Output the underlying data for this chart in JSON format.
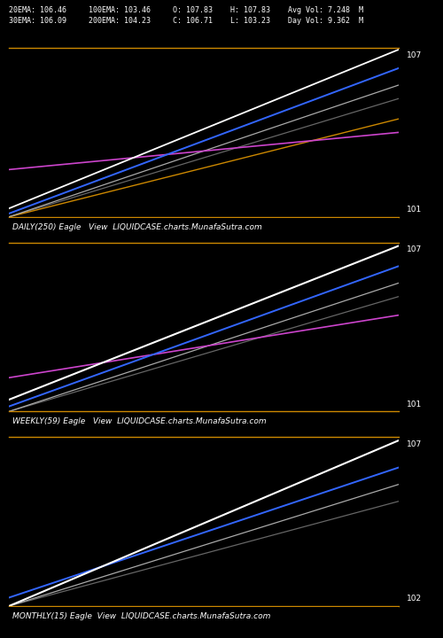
{
  "background_color": "#000000",
  "border_color": "#cc8800",
  "fig_width": 5.0,
  "fig_height": 7.2,
  "header_line1": "20EMA: 106.46     100EMA: 103.46     O: 107.83    H: 107.83    Avg Vol: 7.248  M",
  "header_line2": "30EMA: 106.09     200EMA: 104.23     C: 106.71    L: 103.23    Day Vol: 9.362  M",
  "header_fontsize": 6.0,
  "panels": [
    {
      "label": "DAILY(250) Eagle   View  LIQUIDCASE.charts.MunafaSutra.com",
      "y_top_label": "107",
      "y_bot_label": "101",
      "lines": [
        {
          "x": [
            0.0,
            1.0
          ],
          "y": [
            0.05,
            0.99
          ],
          "color": "#ffffff",
          "lw": 1.3,
          "zorder": 5
        },
        {
          "x": [
            0.0,
            1.0
          ],
          "y": [
            0.02,
            0.88
          ],
          "color": "#3366ff",
          "lw": 1.4,
          "zorder": 4
        },
        {
          "x": [
            0.0,
            1.0
          ],
          "y": [
            0.0,
            0.78
          ],
          "color": "#aaaaaa",
          "lw": 0.9,
          "zorder": 3
        },
        {
          "x": [
            0.0,
            1.0
          ],
          "y": [
            0.0,
            0.7
          ],
          "color": "#666666",
          "lw": 0.9,
          "zorder": 2
        },
        {
          "x": [
            0.0,
            1.0
          ],
          "y": [
            0.0,
            0.58
          ],
          "color": "#cc8800",
          "lw": 1.0,
          "zorder": 2
        },
        {
          "x": [
            0.0,
            1.0
          ],
          "y": [
            0.28,
            0.5
          ],
          "color": "#cc44cc",
          "lw": 1.2,
          "zorder": 3
        }
      ]
    },
    {
      "label": "WEEKLY(59) Eagle   View  LIQUIDCASE.charts.MunafaSutra.com",
      "y_top_label": "107",
      "y_bot_label": "101",
      "lines": [
        {
          "x": [
            0.0,
            1.0
          ],
          "y": [
            0.07,
            0.98
          ],
          "color": "#ffffff",
          "lw": 1.5,
          "zorder": 5
        },
        {
          "x": [
            0.0,
            1.0
          ],
          "y": [
            0.03,
            0.86
          ],
          "color": "#3366ff",
          "lw": 1.4,
          "zorder": 4
        },
        {
          "x": [
            0.0,
            1.0
          ],
          "y": [
            0.0,
            0.76
          ],
          "color": "#aaaaaa",
          "lw": 0.9,
          "zorder": 3
        },
        {
          "x": [
            0.0,
            1.0
          ],
          "y": [
            0.0,
            0.68
          ],
          "color": "#666666",
          "lw": 0.9,
          "zorder": 2
        },
        {
          "x": [
            0.0,
            1.0
          ],
          "y": [
            0.2,
            0.57
          ],
          "color": "#cc44cc",
          "lw": 1.2,
          "zorder": 3
        }
      ]
    },
    {
      "label": "MONTHLY(15) Eagle  View  LIQUIDCASE.charts.MunafaSutra.com",
      "y_top_label": "107",
      "y_bot_label": "102",
      "lines": [
        {
          "x": [
            0.0,
            1.0
          ],
          "y": [
            0.0,
            0.98
          ],
          "color": "#ffffff",
          "lw": 1.5,
          "zorder": 5
        },
        {
          "x": [
            0.0,
            1.0
          ],
          "y": [
            0.0,
            0.72
          ],
          "color": "#aaaaaa",
          "lw": 0.9,
          "zorder": 3
        },
        {
          "x": [
            0.0,
            1.0
          ],
          "y": [
            0.0,
            0.62
          ],
          "color": "#666666",
          "lw": 0.9,
          "zorder": 2
        },
        {
          "x": [
            0.0,
            1.0
          ],
          "y": [
            0.05,
            0.82
          ],
          "color": "#3366ff",
          "lw": 1.4,
          "zorder": 4
        }
      ]
    }
  ]
}
